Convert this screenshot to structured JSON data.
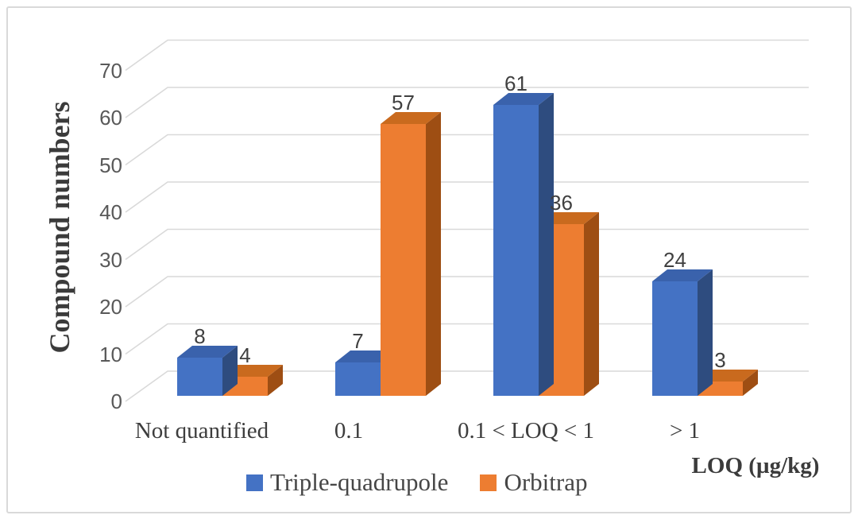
{
  "chart_data": {
    "type": "bar",
    "style": "3d-clustered-column",
    "categories": [
      "Not quantified",
      "0.1",
      "0.1 < LOQ < 1",
      "> 1"
    ],
    "series": [
      {
        "name": "Triple-quadrupole",
        "values": [
          8,
          7,
          61,
          24
        ],
        "color": "#4472C4",
        "color_top": "#3A62AC",
        "color_side": "#2E4C7F"
      },
      {
        "name": "Orbitrap",
        "values": [
          4,
          57,
          36,
          3
        ],
        "color": "#ED7D31",
        "color_top": "#C96A1E",
        "color_side": "#9E4E13"
      }
    ],
    "data_labels": {
      "Triple-quadrupole": [
        "8",
        "7",
        "61",
        "24"
      ],
      "Orbitrap": [
        "4",
        "57",
        "36",
        "3"
      ]
    },
    "title": "",
    "ylabel": "Compound numbers",
    "xlabel": "LOQ (µg/kg)",
    "yticks": [
      0,
      10,
      20,
      30,
      40,
      50,
      60,
      70
    ],
    "ylim": [
      0,
      70
    ],
    "grid": true,
    "gridline_color": "#D9D9D9",
    "legend_position": "bottom-center",
    "legend": [
      "Triple-quadrupole",
      "Orbitrap"
    ]
  },
  "figure": {
    "frame_color": "#D9D9D9",
    "background": "#FFFFFF",
    "tick_text_color": "#595959",
    "label_text_color": "#404040"
  }
}
